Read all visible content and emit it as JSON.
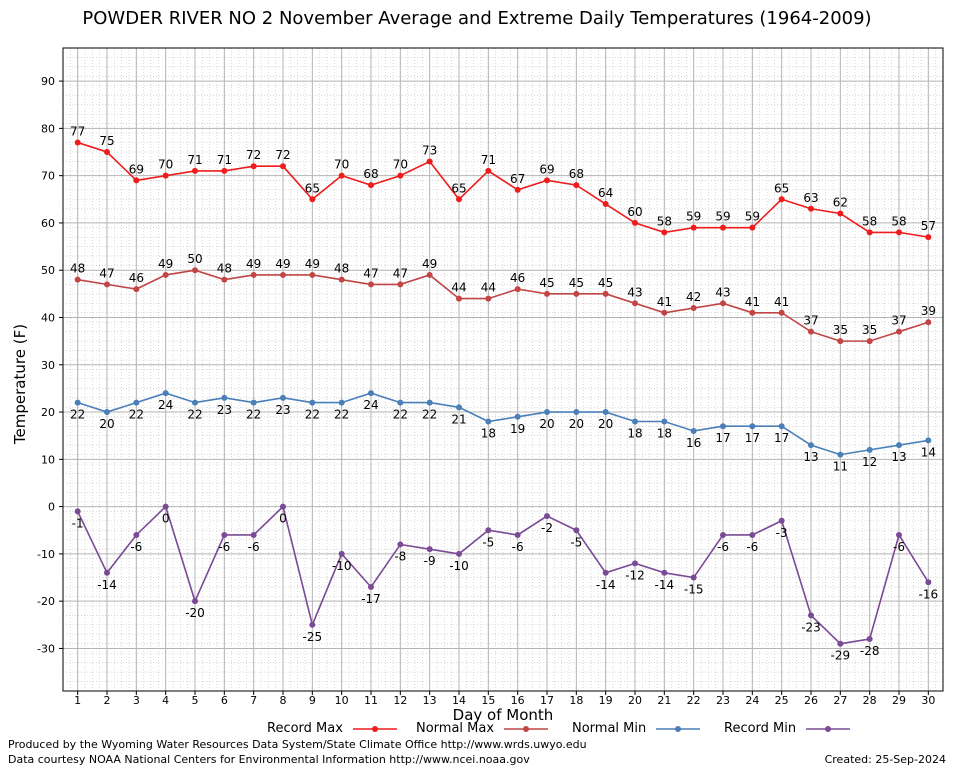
{
  "title": "POWDER RIVER NO 2 November Average and Extreme Daily Temperatures (1964-2009)",
  "footer": {
    "produced": "Produced by the Wyoming Water Resources Data System/State Climate Office http://www.wrds.uwyo.edu",
    "courtesy": "Data courtesy NOAA National Centers for Environmental Information http://www.ncei.noaa.gov",
    "created": "Created:  25-Sep-2024"
  },
  "chart_data": {
    "type": "line",
    "title": "POWDER RIVER NO 2 November Average and Extreme Daily Temperatures (1964-2009)",
    "xlabel": "Day of Month",
    "ylabel": "Temperature (F)",
    "x": [
      1,
      2,
      3,
      4,
      5,
      6,
      7,
      8,
      9,
      10,
      11,
      12,
      13,
      14,
      15,
      16,
      17,
      18,
      19,
      20,
      21,
      22,
      23,
      24,
      25,
      26,
      27,
      28,
      29,
      30
    ],
    "ylim": [
      -39,
      97
    ],
    "yticks": [
      -30,
      -20,
      -10,
      0,
      10,
      20,
      30,
      40,
      50,
      60,
      70,
      80,
      90
    ],
    "grid": true,
    "legend_position": "bottom",
    "series": [
      {
        "name": "Record Max",
        "color": "#ee1c1c",
        "values": [
          77,
          75,
          69,
          70,
          71,
          71,
          72,
          72,
          65,
          70,
          68,
          70,
          73,
          65,
          71,
          67,
          69,
          68,
          64,
          60,
          58,
          59,
          59,
          59,
          65,
          63,
          62,
          58,
          58,
          57
        ]
      },
      {
        "name": "Normal Max",
        "color": "#c24545",
        "values": [
          48,
          47,
          46,
          49,
          50,
          48,
          49,
          49,
          49,
          48,
          47,
          47,
          49,
          44,
          44,
          46,
          45,
          45,
          45,
          43,
          41,
          42,
          43,
          41,
          41,
          37,
          35,
          35,
          37,
          39
        ]
      },
      {
        "name": "Normal Min",
        "color": "#4a7fb8",
        "values": [
          22,
          20,
          22,
          24,
          22,
          23,
          22,
          23,
          22,
          22,
          24,
          22,
          22,
          21,
          18,
          19,
          20,
          20,
          20,
          18,
          18,
          16,
          17,
          17,
          17,
          13,
          11,
          12,
          13,
          14
        ]
      },
      {
        "name": "Record Min",
        "color": "#7a4a96",
        "values": [
          -1,
          -14,
          -6,
          0,
          -20,
          -6,
          -6,
          0,
          -25,
          -10,
          -17,
          -8,
          -9,
          -10,
          -5,
          -6,
          -2,
          -5,
          -14,
          -12,
          -14,
          -15,
          -6,
          -6,
          -3,
          -23,
          -29,
          -28,
          -6,
          -16
        ]
      }
    ]
  }
}
